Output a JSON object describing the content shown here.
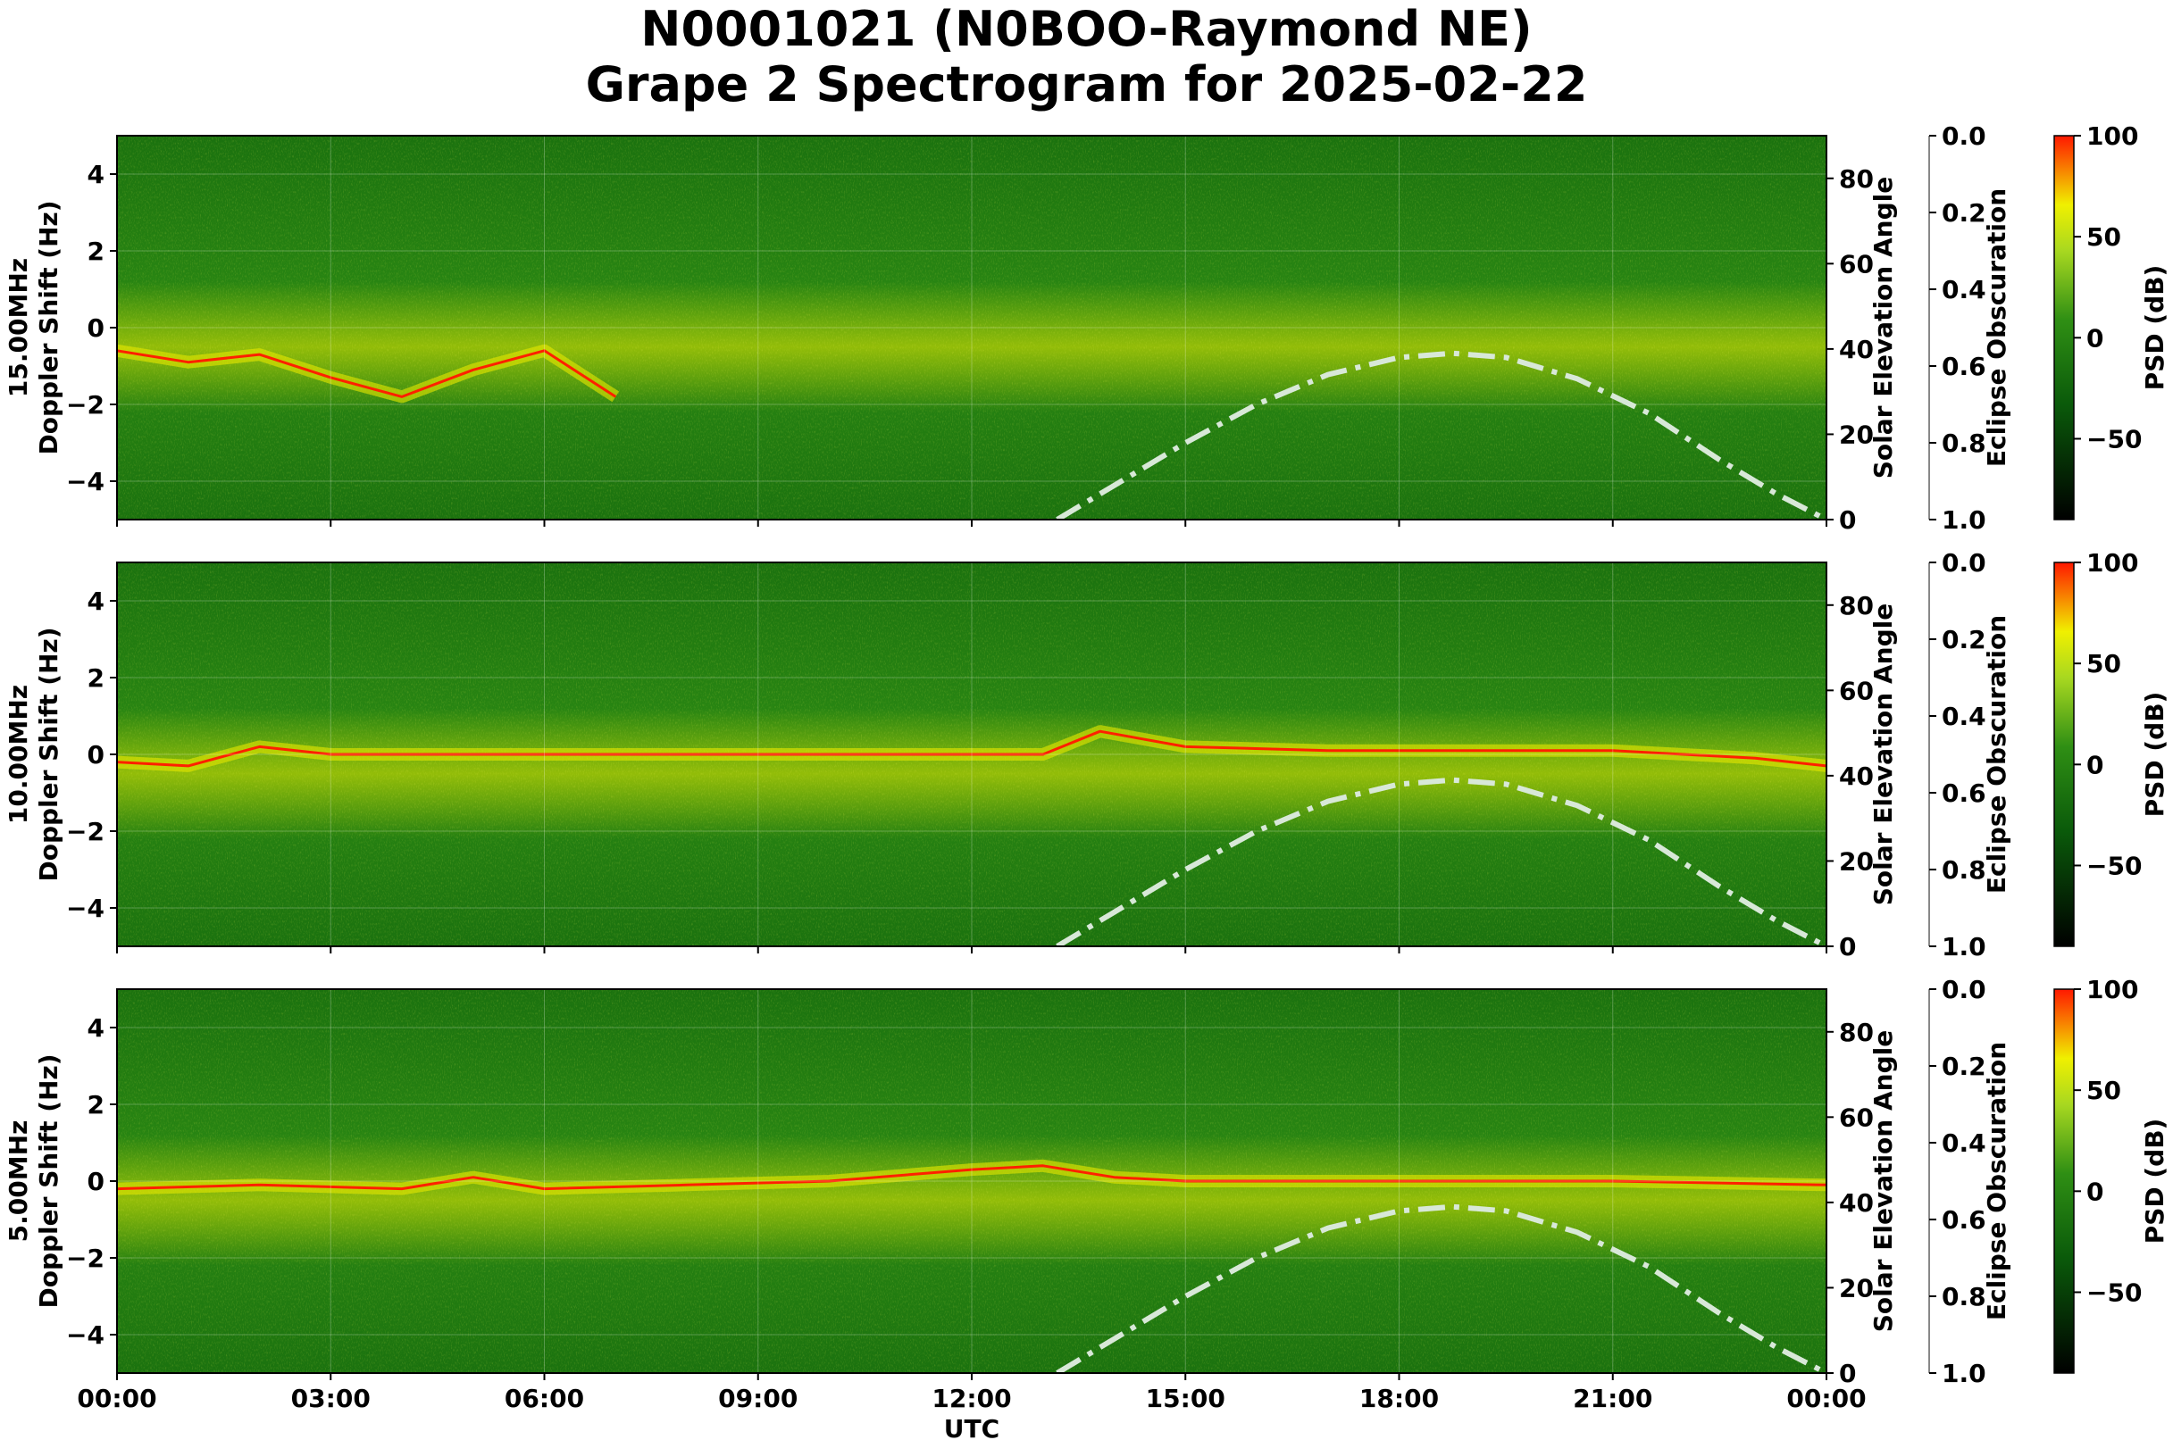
{
  "title_line1": "N0001021 (N0BOO-Raymond NE)",
  "title_line2": "Grape 2 Spectrogram for 2025-02-22",
  "colors": {
    "spec_low": "#0a5a0a",
    "spec_mid": "#2f8f14",
    "spec_high": "#e8e800",
    "spec_peak": "#ff2000",
    "solar_line": "#d8e8d8"
  },
  "chart_data": [
    {
      "type": "heatmap",
      "channel_label": "15.00MHz",
      "ylabel": "Doppler Shift (Hz)",
      "xlabel": "",
      "y2label": "Solar Elevation Angle",
      "y3label": "Eclipse Obscuration",
      "colorbar_label": "PSD (dB)",
      "xlim_hours": [
        0,
        24
      ],
      "ylim": [
        -5,
        5
      ],
      "y2lim": [
        0,
        90
      ],
      "y3lim": [
        1.0,
        0.0
      ],
      "colorbar_lim": [
        -90,
        100
      ],
      "grid": true,
      "solar_elevation": {
        "x_hours": [
          13.2,
          14,
          15,
          16,
          17,
          18,
          18.75,
          19.5,
          20.5,
          21.5,
          22.5,
          23.3,
          24
        ],
        "deg": [
          0,
          8,
          18,
          27,
          34,
          38,
          39,
          38,
          33,
          25,
          14,
          6,
          0
        ]
      },
      "doppler_trace": {
        "x_hours": [
          0,
          1,
          2,
          3,
          4,
          5,
          6,
          7
        ],
        "hz": [
          -0.6,
          -0.9,
          -0.7,
          -1.3,
          -1.8,
          -1.1,
          -0.6,
          -1.8
        ]
      }
    },
    {
      "type": "heatmap",
      "channel_label": "10.00MHz",
      "ylabel": "Doppler Shift (Hz)",
      "xlabel": "",
      "y2label": "Solar Elevation Angle",
      "y3label": "Eclipse Obscuration",
      "colorbar_label": "PSD (dB)",
      "xlim_hours": [
        0,
        24
      ],
      "ylim": [
        -5,
        5
      ],
      "y2lim": [
        0,
        90
      ],
      "y3lim": [
        1.0,
        0.0
      ],
      "colorbar_lim": [
        -90,
        100
      ],
      "grid": true,
      "solar_elevation": {
        "x_hours": [
          13.2,
          14,
          15,
          16,
          17,
          18,
          18.75,
          19.5,
          20.5,
          21.5,
          22.5,
          23.3,
          24
        ],
        "deg": [
          0,
          8,
          18,
          27,
          34,
          38,
          39,
          38,
          33,
          25,
          14,
          6,
          0
        ]
      },
      "doppler_trace": {
        "x_hours": [
          0,
          1,
          2,
          3,
          5,
          7,
          9,
          11,
          13,
          13.8,
          15,
          17,
          19,
          21,
          23,
          24
        ],
        "hz": [
          -0.2,
          -0.3,
          0.2,
          0,
          0,
          0,
          0,
          0,
          0,
          0.6,
          0.2,
          0.1,
          0.1,
          0.1,
          -0.1,
          -0.3
        ]
      }
    },
    {
      "type": "heatmap",
      "channel_label": "5.00MHz",
      "ylabel": "Doppler Shift (Hz)",
      "xlabel": "UTC",
      "y2label": "Solar Elevation Angle",
      "y3label": "Eclipse Obscuration",
      "colorbar_label": "PSD (dB)",
      "xlim_hours": [
        0,
        24
      ],
      "ylim": [
        -5,
        5
      ],
      "y2lim": [
        0,
        90
      ],
      "y3lim": [
        1.0,
        0.0
      ],
      "colorbar_lim": [
        -90,
        100
      ],
      "grid": true,
      "solar_elevation": {
        "x_hours": [
          13.2,
          14,
          15,
          16,
          17,
          18,
          18.75,
          19.5,
          20.5,
          21.5,
          22.5,
          23.3,
          24
        ],
        "deg": [
          0,
          8,
          18,
          27,
          34,
          38,
          39,
          38,
          33,
          25,
          14,
          6,
          0
        ]
      },
      "doppler_trace": {
        "x_hours": [
          0,
          2,
          4,
          5,
          6,
          8,
          10,
          12,
          13,
          14,
          15,
          18,
          21,
          24
        ],
        "hz": [
          -0.2,
          -0.1,
          -0.2,
          0.1,
          -0.2,
          -0.1,
          0,
          0.3,
          0.4,
          0.1,
          0,
          0,
          0,
          -0.1
        ]
      }
    }
  ],
  "x_ticks": [
    "00:00",
    "03:00",
    "06:00",
    "09:00",
    "12:00",
    "15:00",
    "18:00",
    "21:00",
    "00:00"
  ],
  "y_ticks": [
    "4",
    "2",
    "0",
    "−2",
    "−4"
  ],
  "y2_ticks": [
    "80",
    "60",
    "40",
    "20",
    "0"
  ],
  "y3_ticks": [
    "0.0",
    "0.2",
    "0.4",
    "0.6",
    "0.8",
    "1.0"
  ],
  "cbar_ticks": [
    "100",
    "50",
    "0",
    "−50"
  ]
}
